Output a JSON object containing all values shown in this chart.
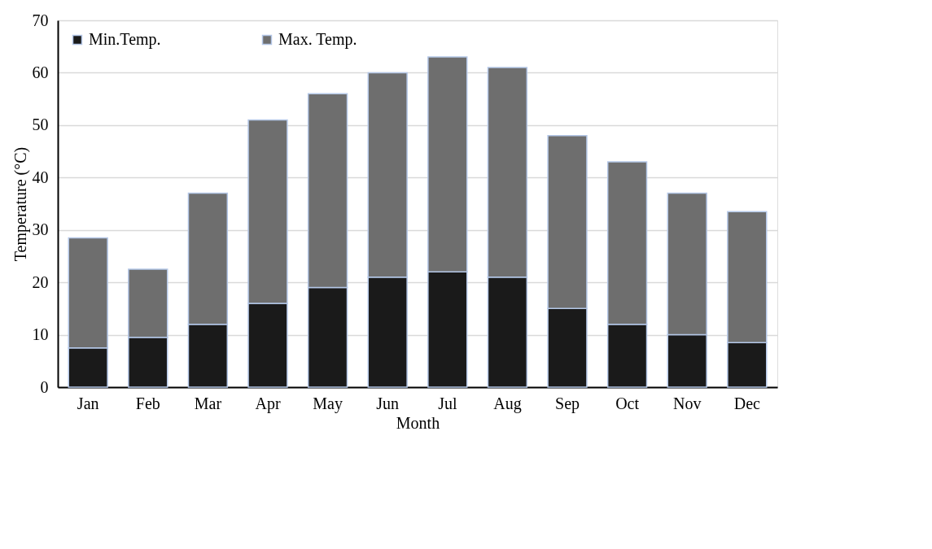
{
  "chart_data": {
    "type": "bar",
    "stacked": true,
    "xlabel": "Month",
    "ylabel": "Temperature (°C)",
    "categories": [
      "Jan",
      "Feb",
      "Mar",
      "Apr",
      "May",
      "Jun",
      "Jul",
      "Aug",
      "Sep",
      "Oct",
      "Nov",
      "Dec"
    ],
    "series": [
      {
        "name": "Min.Temp.",
        "color": "#1a1a1a",
        "values": [
          7.5,
          9.5,
          12,
          16,
          19,
          21,
          22,
          21,
          15,
          12,
          10,
          8.5
        ]
      },
      {
        "name": "Max. Temp.",
        "color": "#6e6e6e",
        "values": [
          21,
          13,
          25,
          35,
          37,
          39,
          41,
          40,
          33,
          31,
          27,
          25
        ]
      }
    ],
    "ylim": [
      0,
      70
    ],
    "yticks": [
      0,
      10,
      20,
      30,
      40,
      50,
      60,
      70
    ],
    "grid": "y",
    "legend": "top left"
  }
}
